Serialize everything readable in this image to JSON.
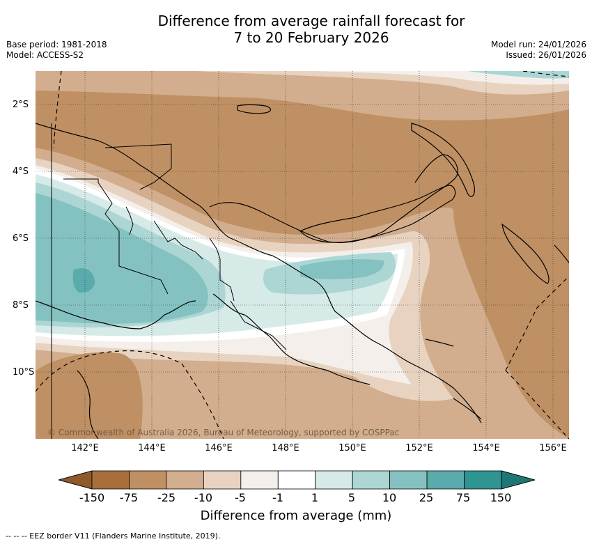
{
  "header": {
    "title_line1": "Difference from average rainfall forecast for",
    "title_line2": "7 to 20 February 2026",
    "base_period": "Base period: 1981-2018",
    "model": "Model: ACCESS-S2",
    "model_run": "Model run: 24/01/2026",
    "issued": "Issued: 26/01/2026"
  },
  "map": {
    "region": "Papua New Guinea",
    "lat_labels": [
      "2°S",
      "4°S",
      "6°S",
      "8°S",
      "10°S"
    ],
    "lon_labels": [
      "142°E",
      "144°E",
      "146°E",
      "148°E",
      "150°E",
      "152°E",
      "154°E",
      "156°E"
    ],
    "copyright": "© Commonwealth of Australia 2026, Bureau of Meteorology, supported by COSPPac"
  },
  "legend": {
    "title": "Difference from average (mm)",
    "ticks": [
      "-150",
      "-75",
      "-25",
      "-10",
      "-5",
      "-1",
      "1",
      "5",
      "10",
      "25",
      "75",
      "150"
    ],
    "colors": [
      "#a96f3a",
      "#bf9063",
      "#d2ae8e",
      "#e8d3c1",
      "#f4efea",
      "#ffffff",
      "#d6eae8",
      "#acd6d4",
      "#84c2c1",
      "#59abac",
      "#2e9593"
    ],
    "low_extend_color": "#8f5a2a",
    "high_extend_color": "#1e7775"
  },
  "footer": {
    "eez_note": "--  --  -- EEZ border V11 (Flanders Marine Institute, 2019)."
  }
}
